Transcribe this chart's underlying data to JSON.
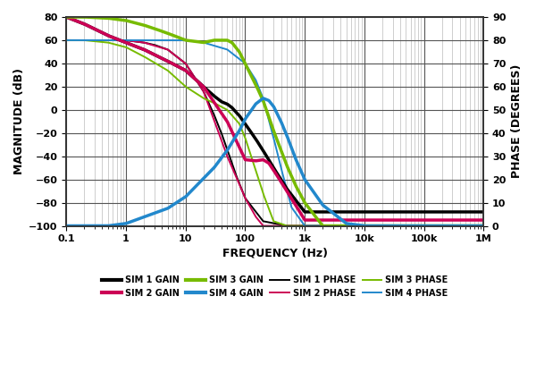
{
  "xlabel": "FREQUENCY (Hz)",
  "ylabel_left": "MAGNITUDE (dB)",
  "ylabel_right": "PHASE (DEGREES)",
  "ylim_left": [
    -100,
    80
  ],
  "ylim_right": [
    0,
    90
  ],
  "xlim": [
    0.1,
    1000000
  ],
  "yticks_left": [
    -100,
    -80,
    -60,
    -40,
    -20,
    0,
    20,
    40,
    60,
    80
  ],
  "yticks_right": [
    0,
    10,
    20,
    30,
    40,
    50,
    60,
    70,
    80,
    90
  ],
  "xtick_labels": [
    "0.1",
    "1",
    "10",
    "100",
    "1k",
    "10k",
    "100k",
    "1M"
  ],
  "xtick_values": [
    0.1,
    1,
    10,
    100,
    1000,
    10000,
    100000,
    1000000
  ],
  "colors": {
    "sim1": "#000000",
    "sim2": "#cc0055",
    "sim3": "#77bb00",
    "sim4": "#2288cc"
  },
  "background": "#ffffff",
  "grid_major_color": "#555555",
  "grid_minor_color": "#aaaaaa",
  "sim1_gain_f": [
    0.1,
    0.2,
    0.5,
    1,
    2,
    5,
    10,
    20,
    30,
    40,
    50,
    60,
    70,
    80,
    100,
    150,
    200,
    300,
    500,
    1000
  ],
  "sim1_gain_g": [
    80,
    74,
    64,
    58,
    52,
    42,
    34,
    20,
    12,
    7,
    5,
    2,
    -2,
    -5,
    -12,
    -25,
    -35,
    -50,
    -68,
    -88
  ],
  "sim2_gain_f": [
    0.1,
    0.2,
    0.5,
    1,
    2,
    5,
    10,
    20,
    50,
    100,
    150,
    200,
    250,
    300,
    400,
    500,
    700,
    1000
  ],
  "sim2_gain_g": [
    80,
    74,
    64,
    58,
    52,
    42,
    34,
    20,
    -10,
    -43,
    -44,
    -43,
    -46,
    -52,
    -62,
    -70,
    -82,
    -95
  ],
  "sim3_gain_f": [
    0.1,
    0.2,
    0.5,
    1,
    2,
    3,
    5,
    10,
    20,
    30,
    40,
    50,
    60,
    80,
    100,
    150,
    200,
    300,
    500,
    700,
    1000,
    2000
  ],
  "sim3_gain_g": [
    80,
    80,
    79,
    77,
    73,
    70,
    66,
    60,
    58,
    60,
    60,
    60,
    58,
    50,
    40,
    22,
    8,
    -18,
    -48,
    -65,
    -80,
    -100
  ],
  "sim4_gain_f": [
    0.1,
    0.5,
    1,
    5,
    10,
    30,
    50,
    80,
    100,
    150,
    200,
    250,
    300,
    400,
    500,
    700,
    1000,
    2000,
    5000,
    10000
  ],
  "sim4_gain_g": [
    -100,
    -100,
    -98,
    -85,
    -75,
    -50,
    -35,
    -18,
    -8,
    5,
    10,
    8,
    3,
    -10,
    -22,
    -42,
    -60,
    -82,
    -98,
    -100
  ],
  "sim1_phase_f": [
    0.1,
    0.2,
    0.5,
    1,
    2,
    3,
    5,
    10,
    20,
    30,
    40,
    50,
    70,
    100,
    200,
    500,
    1000
  ],
  "sim1_phase_p": [
    80,
    80,
    80,
    80,
    79,
    78,
    76,
    70,
    58,
    48,
    40,
    33,
    22,
    12,
    2,
    0,
    0
  ],
  "sim2_phase_f": [
    0.1,
    0.5,
    1,
    2,
    5,
    10,
    20,
    50,
    80,
    100,
    150,
    200,
    300,
    500,
    1000
  ],
  "sim2_phase_p": [
    80,
    80,
    80,
    79,
    76,
    70,
    58,
    30,
    18,
    12,
    4,
    0,
    0,
    0,
    0
  ],
  "sim3_phase_f": [
    0.1,
    0.2,
    0.5,
    1,
    2,
    5,
    10,
    20,
    30,
    50,
    80,
    100,
    150,
    200,
    300,
    500,
    700,
    1000
  ],
  "sim3_phase_p": [
    80,
    80,
    79,
    77,
    73,
    67,
    60,
    55,
    53,
    50,
    44,
    38,
    24,
    14,
    2,
    0,
    0,
    0
  ],
  "sim4_phase_f": [
    0.1,
    0.5,
    1,
    2,
    5,
    10,
    20,
    50,
    100,
    150,
    200,
    300,
    400,
    600,
    1000,
    2000,
    5000,
    10000
  ],
  "sim4_phase_p": [
    80,
    80,
    80,
    80,
    80,
    80,
    79,
    76,
    70,
    63,
    55,
    38,
    25,
    8,
    0,
    0,
    0,
    0
  ]
}
